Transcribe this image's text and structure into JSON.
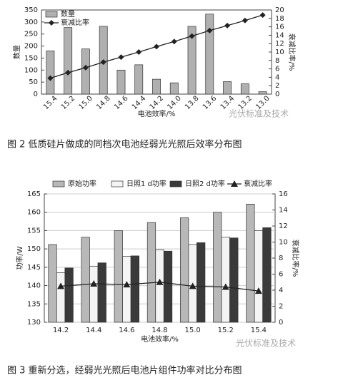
{
  "chart_data": [
    {
      "type": "bar",
      "caption": "图 2 低质硅片做成的同档次电池经弱光光照后效率分布图",
      "watermark": "光伏标准及技术",
      "x_label": "电池效率/%",
      "y_label": "数量",
      "y2_label": "衰减比率/%",
      "categories": [
        "15.4",
        "15.2",
        "15.0",
        "14.8",
        "14.6",
        "14.4",
        "14.2",
        "14.0",
        "13.8",
        "13.6",
        "13.4",
        "13.2",
        "13.0"
      ],
      "series": [
        {
          "name": "数量",
          "type": "bar",
          "color": "#b0b0b0",
          "values": [
            180,
            277,
            188,
            282,
            100,
            122,
            62,
            47,
            282,
            333,
            52,
            43,
            10
          ]
        },
        {
          "name": "衰减比率",
          "type": "line",
          "axis": "y2",
          "marker": "diamond",
          "color": "#222222",
          "values": [
            3.8,
            5.1,
            6.3,
            7.6,
            8.8,
            10.0,
            11.3,
            12.5,
            13.8,
            15.1,
            16.3,
            17.5,
            18.8
          ]
        }
      ],
      "ylim": [
        0,
        350
      ],
      "yticks": [
        0,
        50,
        100,
        150,
        200,
        250,
        300,
        350
      ],
      "y2lim": [
        0,
        20
      ],
      "y2ticks": [
        0,
        2,
        4,
        6,
        8,
        10,
        12,
        14,
        16,
        18,
        20
      ],
      "legend": "upper left",
      "grid": false
    },
    {
      "type": "bar",
      "caption": "图 3 重新分选，经弱光光照后电池片组件功率对比分布图",
      "watermark": "光伏标准及技术",
      "x_label": "电池效率/%",
      "y_label": "功率/W",
      "y2_label": "衰减比率/%",
      "categories": [
        "14.2",
        "14.4",
        "14.6",
        "14.8",
        "15.0",
        "15.2",
        "15.4"
      ],
      "series": [
        {
          "name": "原始功率",
          "type": "bar",
          "color": "#b8b8b8",
          "values": [
            151.2,
            153.2,
            155.0,
            157.2,
            158.5,
            160.0,
            162.2
          ]
        },
        {
          "name": "日照1 d功率",
          "type": "bar",
          "color": "#f4f4f4",
          "values": [
            143.5,
            145.3,
            148.0,
            149.8,
            151.2,
            153.2,
            155.0
          ]
        },
        {
          "name": "日照2 d功率",
          "type": "bar",
          "color": "#3a3a3a",
          "values": [
            144.8,
            146.2,
            148.1,
            149.4,
            151.7,
            153.0,
            155.8
          ]
        },
        {
          "name": "衰减比率",
          "type": "line",
          "axis": "y2",
          "marker": "triangle",
          "color": "#222222",
          "values": [
            4.5,
            4.8,
            4.7,
            5.0,
            4.5,
            4.4,
            3.9
          ]
        }
      ],
      "ylim": [
        130,
        165
      ],
      "yticks": [
        130,
        135,
        140,
        145,
        150,
        155,
        160,
        165
      ],
      "y2lim": [
        0,
        16
      ],
      "y2ticks": [
        0,
        2,
        4,
        6,
        8,
        10,
        12,
        14,
        16
      ],
      "legend": "top",
      "grid": true
    }
  ]
}
